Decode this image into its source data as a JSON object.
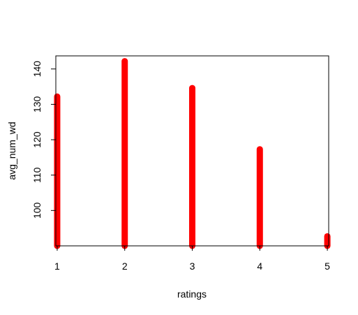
{
  "chart_data": {
    "type": "bar",
    "style": "histogram-lines",
    "x": [
      1,
      2,
      3,
      4,
      5
    ],
    "values": [
      132.2,
      142.2,
      134.6,
      117.3,
      92.7
    ],
    "xlabel": "ratings",
    "ylabel": "avg_num_wd",
    "xlim": [
      0.98,
      5.02
    ],
    "ylim": [
      90,
      143.7
    ],
    "x_ticks": [
      1,
      2,
      3,
      4,
      5
    ],
    "y_ticks": [
      100,
      110,
      120,
      130,
      140
    ],
    "grid": false,
    "legend": "none",
    "bar_color": "#ff0000"
  }
}
